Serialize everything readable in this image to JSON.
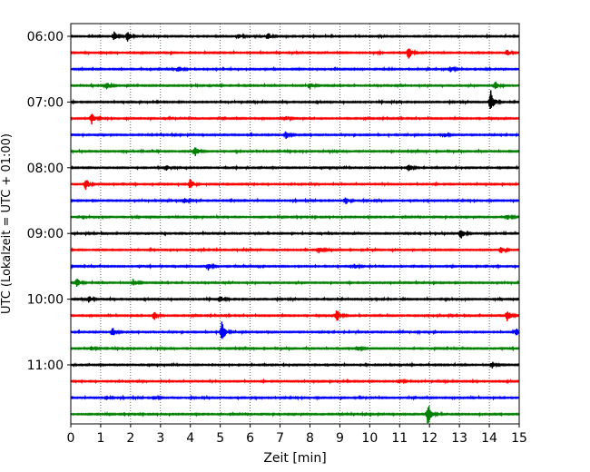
{
  "chart_data": {
    "type": "line",
    "title": "",
    "xlabel": "Zeit  [min]",
    "ylabel": "UTC (Lokalzeit = UTC + 01:00)",
    "xlim": [
      0,
      15
    ],
    "x_ticks": [
      "0",
      "1",
      "2",
      "3",
      "4",
      "5",
      "6",
      "7",
      "8",
      "9",
      "10",
      "11",
      "12",
      "13",
      "14",
      "15"
    ],
    "y_tick_labels": [
      {
        "label": "06:00",
        "trace": 0
      },
      {
        "label": "07:00",
        "trace": 4
      },
      {
        "label": "08:00",
        "trace": 8
      },
      {
        "label": "09:00",
        "trace": 12
      },
      {
        "label": "10:00",
        "trace": 16
      },
      {
        "label": "11:00",
        "trace": 20
      }
    ],
    "grid": "vertical dotted lines at each minute",
    "trace_interval_minutes": 15,
    "trace_colors": [
      "#000000",
      "#ff0000",
      "#0000ff",
      "#008000"
    ],
    "series": [
      {
        "start": "06:00",
        "color": "#000000",
        "events": [
          {
            "t": 1.45,
            "amp": 0.35
          },
          {
            "t": 1.9,
            "amp": 0.4
          },
          {
            "t": 5.6,
            "amp": 0.25
          },
          {
            "t": 6.6,
            "amp": 0.3
          }
        ]
      },
      {
        "start": "06:15",
        "color": "#ff0000",
        "events": [
          {
            "t": 11.3,
            "amp": 0.55
          },
          {
            "t": 14.6,
            "amp": 0.25
          }
        ]
      },
      {
        "start": "06:30",
        "color": "#0000ff",
        "events": [
          {
            "t": 3.6,
            "amp": 0.25
          },
          {
            "t": 12.7,
            "amp": 0.2
          }
        ]
      },
      {
        "start": "06:45",
        "color": "#008000",
        "events": [
          {
            "t": 1.2,
            "amp": 0.3
          },
          {
            "t": 8.0,
            "amp": 0.25
          },
          {
            "t": 14.2,
            "amp": 0.35
          }
        ]
      },
      {
        "start": "07:00",
        "color": "#000000",
        "events": [
          {
            "t": 14.05,
            "amp": 1.0
          }
        ]
      },
      {
        "start": "07:15",
        "color": "#ff0000",
        "events": [
          {
            "t": 0.7,
            "amp": 0.45
          },
          {
            "t": 7.2,
            "amp": 0.2
          }
        ]
      },
      {
        "start": "07:30",
        "color": "#0000ff",
        "events": [
          {
            "t": 7.2,
            "amp": 0.35
          },
          {
            "t": 12.5,
            "amp": 0.2
          }
        ]
      },
      {
        "start": "07:45",
        "color": "#008000",
        "events": [
          {
            "t": 4.15,
            "amp": 0.5
          }
        ]
      },
      {
        "start": "08:00",
        "color": "#000000",
        "events": [
          {
            "t": 11.3,
            "amp": 0.4
          },
          {
            "t": 3.2,
            "amp": 0.2
          }
        ]
      },
      {
        "start": "08:15",
        "color": "#ff0000",
        "events": [
          {
            "t": 0.5,
            "amp": 0.5
          },
          {
            "t": 4.0,
            "amp": 0.45
          }
        ]
      },
      {
        "start": "08:30",
        "color": "#0000ff",
        "events": [
          {
            "t": 3.8,
            "amp": 0.25
          },
          {
            "t": 9.2,
            "amp": 0.3
          }
        ]
      },
      {
        "start": "08:45",
        "color": "#008000",
        "events": [
          {
            "t": 14.6,
            "amp": 0.25
          }
        ]
      },
      {
        "start": "09:00",
        "color": "#000000",
        "events": [
          {
            "t": 13.05,
            "amp": 0.45
          }
        ]
      },
      {
        "start": "09:15",
        "color": "#ff0000",
        "events": [
          {
            "t": 8.3,
            "amp": 0.25
          },
          {
            "t": 14.4,
            "amp": 0.3
          }
        ]
      },
      {
        "start": "09:30",
        "color": "#0000ff",
        "events": [
          {
            "t": 4.6,
            "amp": 0.3
          },
          {
            "t": 9.5,
            "amp": 0.2
          }
        ]
      },
      {
        "start": "09:45",
        "color": "#008000",
        "events": [
          {
            "t": 0.2,
            "amp": 0.35
          },
          {
            "t": 2.1,
            "amp": 0.3
          }
        ]
      },
      {
        "start": "10:00",
        "color": "#000000",
        "events": [
          {
            "t": 0.6,
            "amp": 0.25
          },
          {
            "t": 5.0,
            "amp": 0.25
          }
        ]
      },
      {
        "start": "10:15",
        "color": "#ff0000",
        "events": [
          {
            "t": 2.8,
            "amp": 0.4
          },
          {
            "t": 8.9,
            "amp": 0.55
          },
          {
            "t": 14.6,
            "amp": 0.55
          }
        ]
      },
      {
        "start": "10:30",
        "color": "#0000ff",
        "events": [
          {
            "t": 1.4,
            "amp": 0.4
          },
          {
            "t": 5.05,
            "amp": 0.95
          },
          {
            "t": 14.9,
            "amp": 0.3
          }
        ]
      },
      {
        "start": "10:45",
        "color": "#008000",
        "events": [
          {
            "t": 0.7,
            "amp": 0.2
          },
          {
            "t": 9.6,
            "amp": 0.2
          }
        ]
      },
      {
        "start": "11:00",
        "color": "#000000",
        "events": [
          {
            "t": 14.1,
            "amp": 0.25
          }
        ]
      },
      {
        "start": "11:15",
        "color": "#ff0000",
        "events": [
          {
            "t": 11.0,
            "amp": 0.2
          }
        ]
      },
      {
        "start": "11:30",
        "color": "#0000ff",
        "events": [
          {
            "t": 1.2,
            "amp": 0.2
          },
          {
            "t": 2.8,
            "amp": 0.2
          }
        ]
      },
      {
        "start": "11:45",
        "color": "#008000",
        "events": [
          {
            "t": 11.95,
            "amp": 0.95
          }
        ]
      }
    ]
  }
}
